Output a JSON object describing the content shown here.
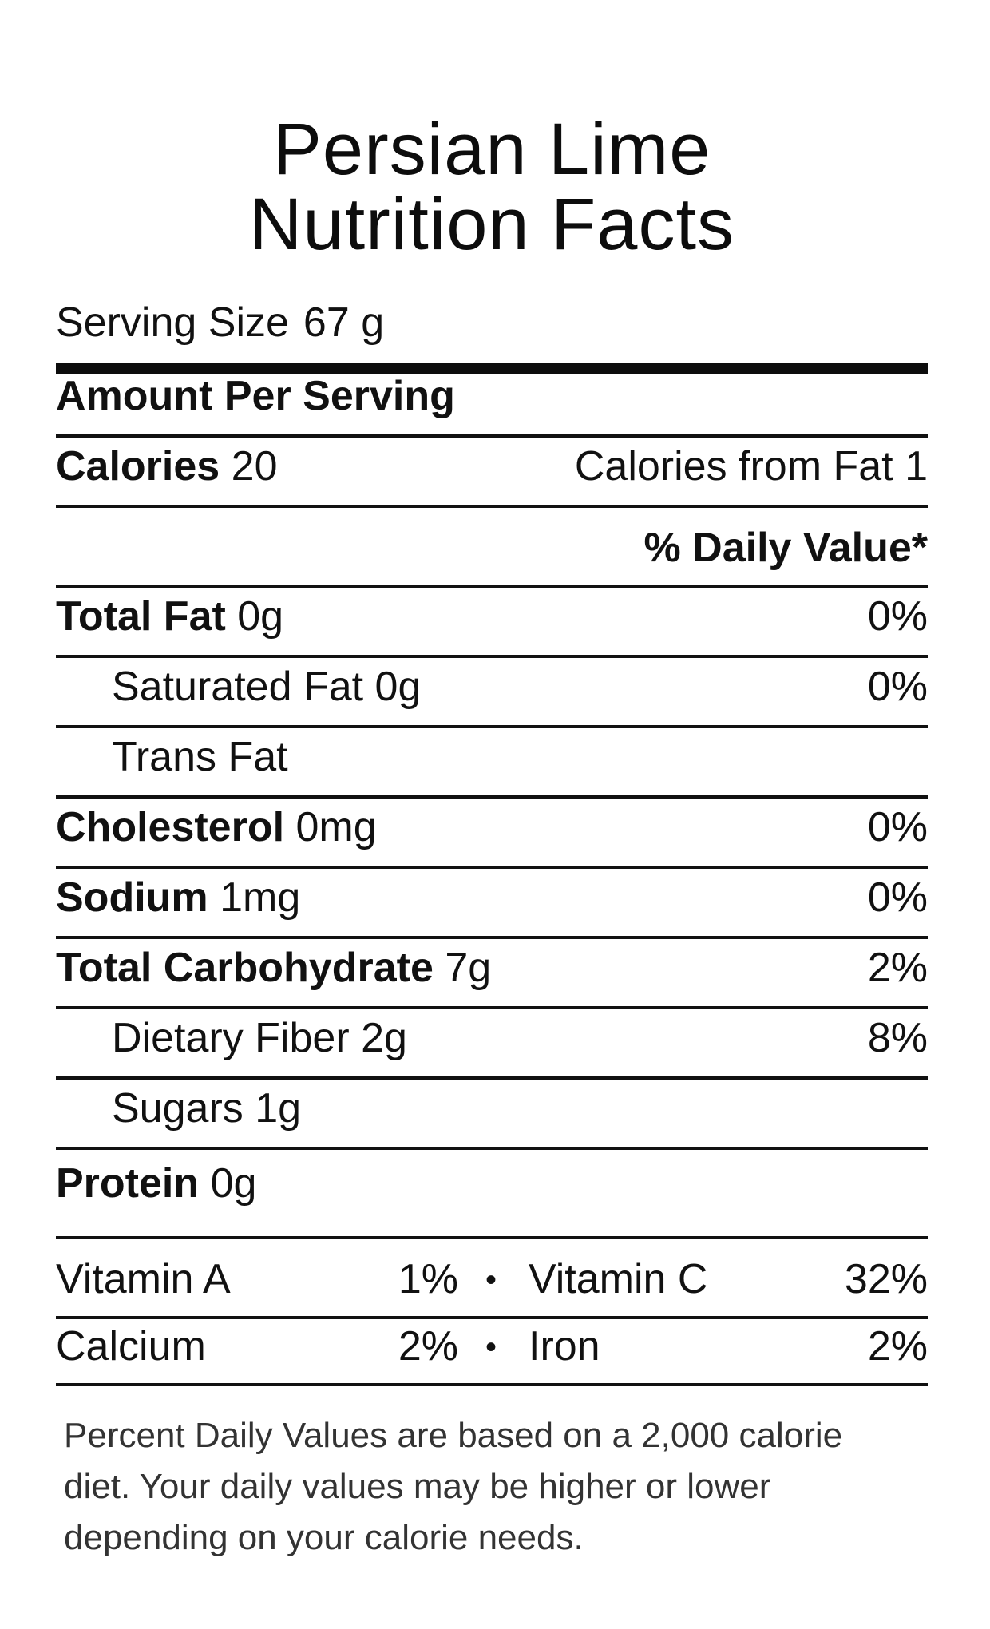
{
  "title": {
    "line1": "Persian Lime",
    "line2": "Nutrition Facts"
  },
  "serving": {
    "label": "Serving Size",
    "value": "67 g"
  },
  "amount_per_serving": "Amount Per Serving",
  "calories": {
    "label": "Calories",
    "value": "20",
    "from_fat": "Calories from Fat 1"
  },
  "daily_value_header": "% Daily Value*",
  "nutrients": [
    {
      "name": "Total Fat",
      "amount": "0g",
      "dv": "0%"
    },
    {
      "name": "Saturated Fat",
      "amount": "0g",
      "dv": "0%"
    },
    {
      "name": "Trans Fat",
      "amount": "",
      "dv": ""
    },
    {
      "name": "Cholesterol",
      "amount": "0mg",
      "dv": "0%"
    },
    {
      "name": "Sodium",
      "amount": "1mg",
      "dv": "0%"
    },
    {
      "name": "Total Carbohydrate",
      "amount": "7g",
      "dv": "2%"
    },
    {
      "name": "Dietary Fiber",
      "amount": "2g",
      "dv": "8%"
    },
    {
      "name": "Sugars",
      "amount": "1g",
      "dv": ""
    },
    {
      "name": "Protein",
      "amount": "0g",
      "dv": ""
    }
  ],
  "vitamins": [
    {
      "name": "Vitamin A",
      "dv": "1%"
    },
    {
      "name": "Vitamin C",
      "dv": "32%"
    },
    {
      "name": "Calcium",
      "dv": "2%"
    },
    {
      "name": "Iron",
      "dv": "2%"
    }
  ],
  "separator": "•",
  "footnote": "Percent Daily Values are based on a 2,000 calorie diet. Your daily values may be higher or lower depending on your calorie needs."
}
